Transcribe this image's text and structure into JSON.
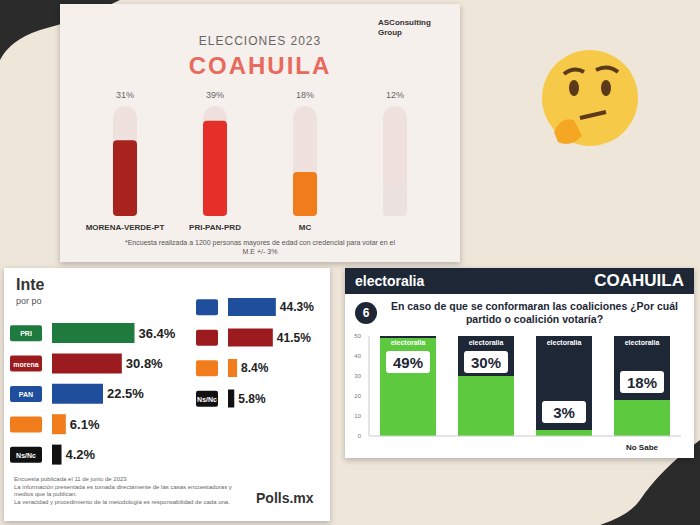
{
  "chart_data": [
    {
      "type": "bar",
      "subtitle": "ELECCIONES 2023",
      "title": "COAHUILA",
      "categories": [
        "MORENA-VERDE-PT",
        "PRI-PAN-PRD",
        "MC",
        null
      ],
      "values": [
        31,
        39,
        18,
        12
      ],
      "value_labels": [
        "31%",
        "39%",
        "18%",
        "12%"
      ],
      "colors": [
        "#a8231d",
        "#e5302a",
        "#f07c1b",
        "#ece3e0"
      ],
      "ylim": [
        0,
        45
      ],
      "data_labels": true,
      "tick_labels": "x",
      "annotations": [
        "ASConsulting Group",
        "*Encuesta realizada a 1200 personas mayores de edad con credencial para votar en el",
        "M.E +/- 3%"
      ]
    },
    {
      "type": "bar",
      "orientation": "horizontal",
      "title": "Inte",
      "subtitle": "por po",
      "categories": [
        "PRI",
        "morena",
        "PAN",
        null,
        "Ns/Nc"
      ],
      "values": [
        36.4,
        30.8,
        22.5,
        6.1,
        4.2
      ],
      "value_labels": [
        "36.4%",
        "30.8%",
        "22.5%",
        "6.1%",
        "4.2%"
      ],
      "colors": [
        "#1f7a3d",
        "#9b1b1e",
        "#1f4f9c",
        "#f07c1b",
        "#111111"
      ],
      "xlim": [
        0,
        45
      ],
      "data_labels": true,
      "tick_labels": "y",
      "annotations": [
        "Encuesta publicada el 11 de junio de 2023",
        "La información presentada es tomada directamente de las casas encuestadoras y medios que la publican.",
        "La veracidad y procedimiento de la metodología es responsabilidad de cada una.",
        "Polls.mx"
      ]
    },
    {
      "type": "bar",
      "orientation": "horizontal",
      "categories": [
        null,
        null,
        null,
        "Ns/Nc"
      ],
      "values": [
        44.3,
        41.5,
        8.4,
        5.8
      ],
      "value_labels": [
        "44.3%",
        "41.5%",
        "8.4%",
        "5.8%"
      ],
      "colors": [
        "#1f4f9c",
        "#9b1b1e",
        "#f07c1b",
        "#111111"
      ],
      "xlim": [
        0,
        50
      ],
      "data_labels": true,
      "tick_labels": "y"
    },
    {
      "type": "bar",
      "title": "COAHUILA",
      "subtitle": "En caso de que se conformaran las coaliciones ¿Por cuál partido o coalición votaría?",
      "categories": [
        null,
        null,
        null,
        "No Sabe"
      ],
      "values": [
        49,
        30,
        3,
        18
      ],
      "value_labels": [
        "49%",
        "30%",
        "3%",
        "18%"
      ],
      "color": "#5cc93f",
      "ylim": [
        0,
        50
      ],
      "yticks": [
        0,
        10,
        20,
        30,
        40,
        50
      ],
      "data_labels": true,
      "annotations": [
        "electoralia",
        "6"
      ]
    }
  ]
}
